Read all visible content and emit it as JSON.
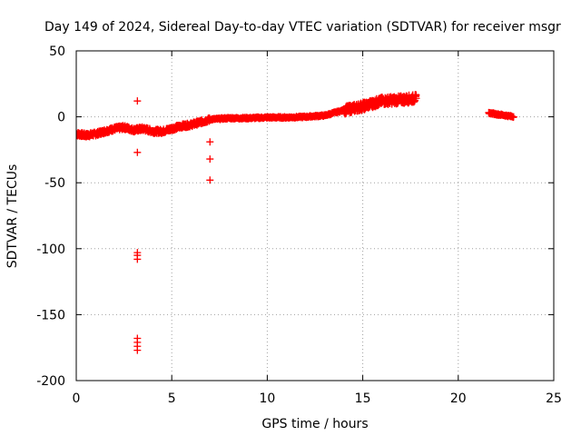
{
  "chart_data": {
    "type": "scatter",
    "title": "Day 149 of 2024, Sidereal Day-to-day VTEC variation (SDTVAR) for receiver msgr",
    "xlabel": "GPS time / hours",
    "ylabel": "SDTVAR / TECUs",
    "xlim": [
      0,
      25
    ],
    "ylim": [
      -200,
      50
    ],
    "xticks": [
      0,
      5,
      10,
      15,
      20,
      25
    ],
    "yticks": [
      50,
      0,
      -50,
      -100,
      -150,
      -200
    ],
    "grid": true,
    "marker": "+",
    "color": "#ff0000",
    "trend": [
      [
        0.0,
        -13
      ],
      [
        0.5,
        -14
      ],
      [
        1.0,
        -13
      ],
      [
        1.5,
        -11
      ],
      [
        2.0,
        -9
      ],
      [
        2.5,
        -8
      ],
      [
        3.0,
        -10
      ],
      [
        3.5,
        -9
      ],
      [
        4.0,
        -11
      ],
      [
        4.5,
        -11
      ],
      [
        5.0,
        -9
      ],
      [
        5.5,
        -7
      ],
      [
        6.0,
        -6
      ],
      [
        6.5,
        -4
      ],
      [
        7.0,
        -2
      ],
      [
        7.5,
        -1.5
      ],
      [
        8.0,
        -1
      ],
      [
        9.0,
        -1
      ],
      [
        10.0,
        -0.5
      ],
      [
        11.0,
        -0.5
      ],
      [
        12.0,
        0
      ],
      [
        13.0,
        1
      ],
      [
        14.0,
        5
      ],
      [
        15.0,
        8
      ],
      [
        16.0,
        12
      ],
      [
        17.0,
        13
      ],
      [
        17.8,
        14
      ],
      [
        21.6,
        3
      ],
      [
        22.0,
        2
      ],
      [
        22.5,
        1
      ],
      [
        22.9,
        0
      ]
    ],
    "outliers": [
      [
        3.2,
        12
      ],
      [
        3.2,
        -27
      ],
      [
        3.2,
        -103
      ],
      [
        3.2,
        -105
      ],
      [
        3.2,
        -108
      ],
      [
        3.2,
        -168
      ],
      [
        3.2,
        -171
      ],
      [
        3.2,
        -174
      ],
      [
        3.2,
        -177
      ],
      [
        7.0,
        -19
      ],
      [
        7.0,
        -32
      ],
      [
        7.0,
        -48
      ]
    ]
  }
}
